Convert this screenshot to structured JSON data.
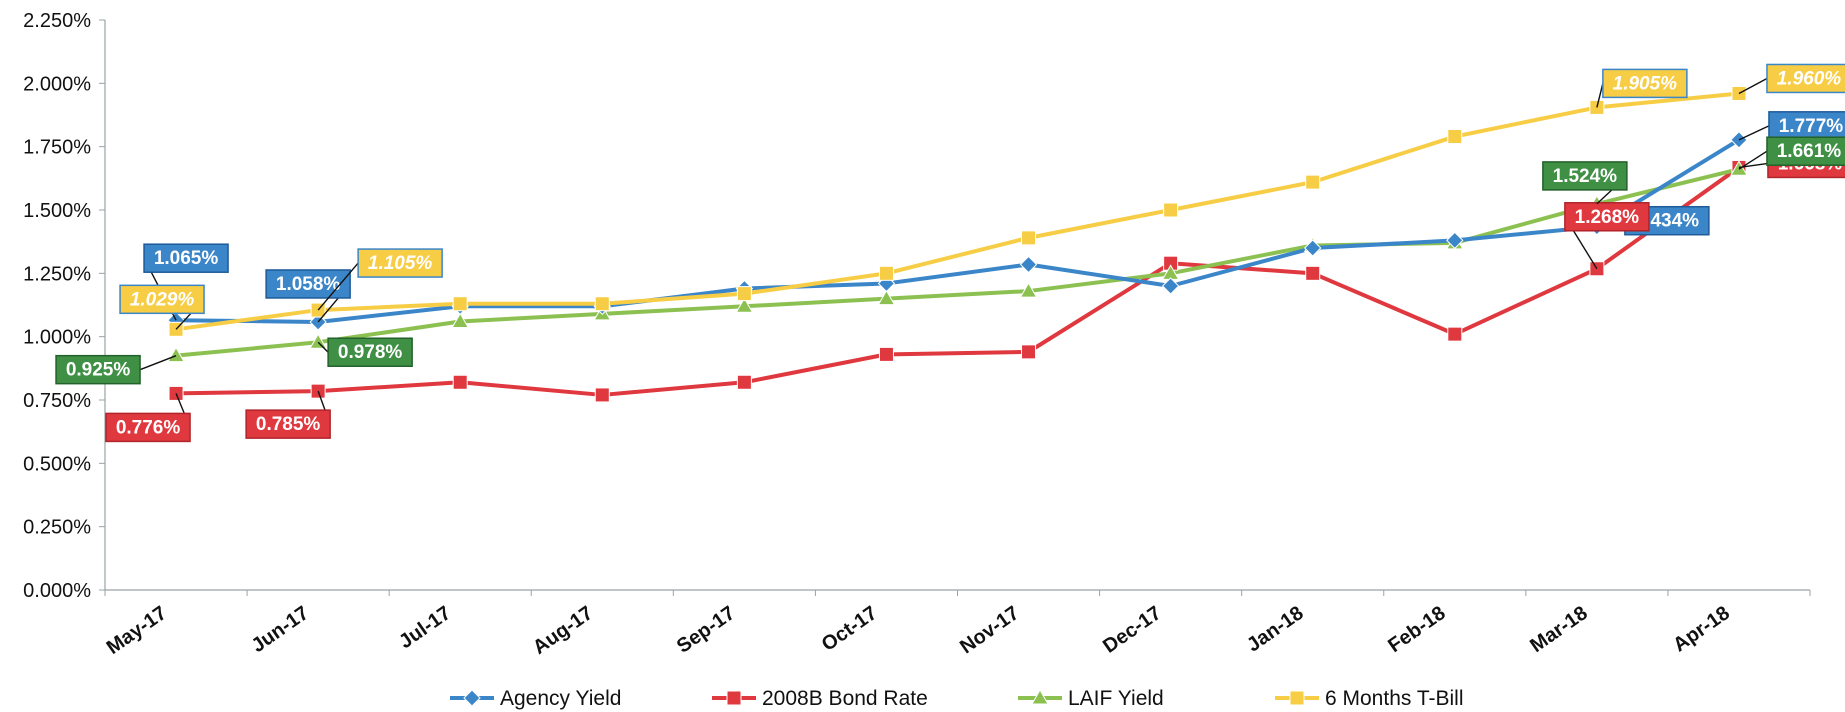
{
  "chart_data": {
    "type": "line",
    "categories": [
      "May-17",
      "Jun-17",
      "Jul-17",
      "Aug-17",
      "Sep-17",
      "Oct-17",
      "Nov-17",
      "Dec-17",
      "Jan-18",
      "Feb-18",
      "Mar-18",
      "Apr-18"
    ],
    "ylim": [
      0,
      2.25
    ],
    "yticks": [
      "0.000%",
      "0.250%",
      "0.500%",
      "0.750%",
      "1.000%",
      "1.250%",
      "1.500%",
      "1.750%",
      "2.000%",
      "2.250%"
    ],
    "grid": false,
    "legend_position": "bottom",
    "series": [
      {
        "name": "Agency Yield",
        "color": "#3b86c9",
        "marker": "diamond",
        "values": [
          1.065,
          1.058,
          1.12,
          1.12,
          1.19,
          1.21,
          1.285,
          1.2,
          1.35,
          1.38,
          1.434,
          1.777
        ],
        "labels": [
          {
            "index": 0,
            "text": "1.065%"
          },
          {
            "index": 1,
            "text": "1.058%"
          },
          {
            "index": 10,
            "text": "1.434%"
          },
          {
            "index": 11,
            "text": "1.777%"
          }
        ]
      },
      {
        "name": "2008B Bond Rate",
        "color": "#e0383f",
        "marker": "square",
        "values": [
          0.776,
          0.785,
          0.82,
          0.77,
          0.82,
          0.93,
          0.94,
          1.29,
          1.25,
          1.01,
          1.268,
          1.668
        ],
        "labels": [
          {
            "index": 0,
            "text": "0.776%"
          },
          {
            "index": 1,
            "text": "0.785%"
          },
          {
            "index": 10,
            "text": "1.268%"
          },
          {
            "index": 11,
            "text": "1.668%"
          }
        ]
      },
      {
        "name": "LAIF Yield",
        "color": "#8cc152",
        "marker": "triangle",
        "values": [
          0.925,
          0.978,
          1.06,
          1.09,
          1.12,
          1.15,
          1.18,
          1.25,
          1.36,
          1.37,
          1.524,
          1.661
        ],
        "labels": [
          {
            "index": 0,
            "text": "0.925%"
          },
          {
            "index": 1,
            "text": "0.978%"
          },
          {
            "index": 10,
            "text": "1.524%"
          },
          {
            "index": 11,
            "text": "1.661%"
          }
        ]
      },
      {
        "name": "6 Months T-Bill",
        "color": "#f7cd46",
        "marker": "square",
        "values": [
          1.029,
          1.105,
          1.13,
          1.13,
          1.17,
          1.25,
          1.39,
          1.5,
          1.61,
          1.79,
          1.905,
          1.96
        ],
        "labels": [
          {
            "index": 0,
            "text": "1.029%"
          },
          {
            "index": 1,
            "text": "1.105%"
          },
          {
            "index": 10,
            "text": "1.905%"
          },
          {
            "index": 11,
            "text": "1.960%"
          }
        ]
      }
    ]
  }
}
